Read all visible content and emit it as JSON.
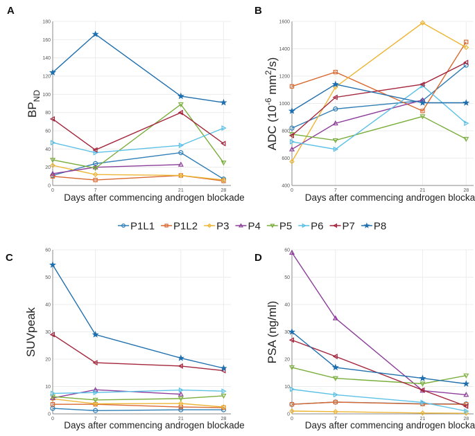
{
  "legend": {
    "entries": [
      {
        "name": "P1L1",
        "color": "#2E7DB5",
        "marker": "circle"
      },
      {
        "name": "P1L2",
        "color": "#D9682F",
        "marker": "square"
      },
      {
        "name": "P3",
        "color": "#EDB534",
        "marker": "diamond"
      },
      {
        "name": "P4",
        "color": "#8C3D9A",
        "marker": "triangle-up"
      },
      {
        "name": "P5",
        "color": "#7AAE3C",
        "marker": "triangle-down"
      },
      {
        "name": "P6",
        "color": "#5BC0E6",
        "marker": "triangle-right"
      },
      {
        "name": "P7",
        "color": "#A3243B",
        "marker": "triangle-left"
      },
      {
        "name": "P8",
        "color": "#1F6FAE",
        "marker": "star"
      }
    ]
  },
  "chart_data": [
    {
      "panel": "A",
      "type": "line",
      "title": "",
      "xlabel": "Days after commencing androgen blockade",
      "ylabel": "BP",
      "ylabel_sub": "ND",
      "x": [
        0,
        7,
        21,
        28
      ],
      "xticks": [
        "0",
        "7",
        "21",
        "28"
      ],
      "ylim": [
        0,
        180
      ],
      "yticks": [
        0,
        20,
        40,
        60,
        80,
        100,
        120,
        140,
        160,
        180
      ],
      "grid": true,
      "series": [
        {
          "name": "P1L1",
          "values": [
            11,
            24,
            36,
            7
          ]
        },
        {
          "name": "P1L2",
          "values": [
            10,
            6,
            11,
            5
          ]
        },
        {
          "name": "P3",
          "values": [
            22,
            12,
            11,
            6
          ]
        },
        {
          "name": "P4",
          "values": [
            13,
            20,
            23,
            null
          ]
        },
        {
          "name": "P5",
          "values": [
            28,
            19,
            89,
            25
          ]
        },
        {
          "name": "P6",
          "values": [
            47,
            36,
            44,
            63
          ]
        },
        {
          "name": "P7",
          "values": [
            73,
            39,
            80,
            46
          ]
        },
        {
          "name": "P8",
          "values": [
            124,
            166,
            98,
            91
          ]
        }
      ]
    },
    {
      "panel": "B",
      "type": "line",
      "title": "",
      "xlabel": "Days after commencing androgen blockade",
      "ylabel": "ADC (10^-6 mm^2/s)",
      "x": [
        0,
        7,
        21,
        28
      ],
      "xticks": [
        "0",
        "7",
        "21",
        "28"
      ],
      "ylim": [
        400,
        1600
      ],
      "yticks": [
        400,
        600,
        800,
        1000,
        1200,
        1400,
        1600
      ],
      "grid": true,
      "series": [
        {
          "name": "P1L1",
          "values": [
            820,
            960,
            1020,
            1280
          ]
        },
        {
          "name": "P1L2",
          "values": [
            1125,
            1230,
            945,
            1450
          ]
        },
        {
          "name": "P3",
          "values": [
            575,
            1120,
            1590,
            1410
          ]
        },
        {
          "name": "P4",
          "values": [
            665,
            855,
            1025,
            null
          ]
        },
        {
          "name": "P5",
          "values": [
            775,
            730,
            905,
            740
          ]
        },
        {
          "name": "P6",
          "values": [
            720,
            665,
            1130,
            855
          ]
        },
        {
          "name": "P7",
          "values": [
            765,
            1045,
            1140,
            1300
          ]
        },
        {
          "name": "P8",
          "values": [
            945,
            1140,
            1005,
            1005
          ]
        }
      ]
    },
    {
      "panel": "C",
      "type": "line",
      "title": "",
      "xlabel": "Days after commencing androgen blockade",
      "ylabel": "SUVpeak",
      "x": [
        0,
        7,
        21,
        28
      ],
      "xticks": [
        "0",
        "7",
        "21",
        "28"
      ],
      "ylim": [
        0,
        60
      ],
      "yticks": [
        0,
        10,
        20,
        30,
        40,
        50,
        60
      ],
      "grid": true,
      "series": [
        {
          "name": "P1L1",
          "values": [
            2,
            1.2,
            1.5,
            1.5
          ]
        },
        {
          "name": "P1L2",
          "values": [
            3.5,
            3.5,
            2.5,
            2.3
          ]
        },
        {
          "name": "P3",
          "values": [
            5.5,
            3.7,
            3.8,
            2.5
          ]
        },
        {
          "name": "P4",
          "values": [
            5.8,
            8.8,
            7.2,
            null
          ]
        },
        {
          "name": "P5",
          "values": [
            6.3,
            5.1,
            5.6,
            6.6
          ]
        },
        {
          "name": "P6",
          "values": [
            7.5,
            7.8,
            8.7,
            8.3
          ]
        },
        {
          "name": "P7",
          "values": [
            29,
            18.7,
            17.5,
            15.8
          ]
        },
        {
          "name": "P8",
          "values": [
            54.5,
            29,
            20.4,
            16.7
          ]
        }
      ]
    },
    {
      "panel": "D",
      "type": "line",
      "title": "",
      "xlabel": "Days after commencing androgen blockade",
      "ylabel": "PSA (ng/ml)",
      "x": [
        0,
        7,
        21,
        28
      ],
      "xticks": [
        "0",
        "7",
        "21",
        "28"
      ],
      "ylim": [
        0,
        60
      ],
      "yticks": [
        0,
        10,
        20,
        30,
        40,
        50,
        60
      ],
      "grid": true,
      "series": [
        {
          "name": "P1L1",
          "values": [
            3.5,
            4.3,
            3.7,
            3.6
          ]
        },
        {
          "name": "P1L2",
          "values": [
            3.5,
            4.3,
            3.6,
            3.5
          ]
        },
        {
          "name": "P3",
          "values": [
            1,
            0.8,
            0.3,
            0.2
          ]
        },
        {
          "name": "P4",
          "values": [
            59,
            35,
            8.5,
            7
          ]
        },
        {
          "name": "P5",
          "values": [
            17,
            13,
            11,
            14
          ]
        },
        {
          "name": "P6",
          "values": [
            9,
            7,
            4.2,
            1
          ]
        },
        {
          "name": "P7",
          "values": [
            27,
            21,
            8.7,
            2.8
          ]
        },
        {
          "name": "P8",
          "values": [
            30,
            17,
            13,
            11
          ]
        }
      ]
    }
  ]
}
